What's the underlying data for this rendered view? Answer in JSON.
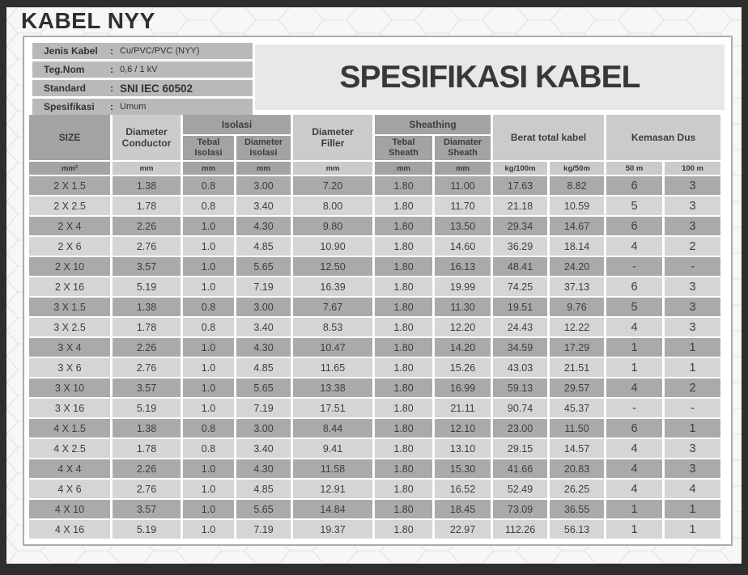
{
  "page": {
    "title": "KABEL NYY",
    "colon": ":"
  },
  "info_panel": {
    "rows": [
      {
        "label": "Jenis Kabel",
        "value": "Cu/PVC/PVC (NYY)"
      },
      {
        "label": "Teg.Nom",
        "value": "0,6 / 1 kV"
      },
      {
        "label": "Standard",
        "value": "SNI IEC 60502"
      },
      {
        "label": "Spesifikasi",
        "value": "Umum"
      }
    ]
  },
  "main_title": "SPESIFIKASI KABEL",
  "table": {
    "headers": {
      "size": "SIZE",
      "diameter_conductor": "Diameter Conductor",
      "isolasi_group": "Isolasi",
      "tebal_isolasi": "Tebal Isolasi",
      "diameter_isolasi": "Diameter Isolasi",
      "diameter_filler": "Diameter Filler",
      "sheathing_group": "Sheathing",
      "tebal_sheath": "Tebal Sheath",
      "diamater_sheath": "Diamater Sheath",
      "berat_total": "Berat total kabel",
      "kemasan_dus": "Kemasan Dus"
    },
    "units": [
      "mm²",
      "mm",
      "mm",
      "mm",
      "mm",
      "mm",
      "mm",
      "kg/100m",
      "kg/50m",
      "50 m",
      "100 m"
    ],
    "rows": [
      [
        "2 X 1.5",
        "1.38",
        "0.8",
        "3.00",
        "7.20",
        "1.80",
        "11.00",
        "17.63",
        "8.82",
        "6",
        "3"
      ],
      [
        "2 X 2.5",
        "1.78",
        "0.8",
        "3.40",
        "8.00",
        "1.80",
        "11.70",
        "21.18",
        "10.59",
        "5",
        "3"
      ],
      [
        "2 X 4",
        "2.26",
        "1.0",
        "4.30",
        "9.80",
        "1.80",
        "13.50",
        "29.34",
        "14.67",
        "6",
        "3"
      ],
      [
        "2 X 6",
        "2.76",
        "1.0",
        "4.85",
        "10.90",
        "1.80",
        "14.60",
        "36.29",
        "18.14",
        "4",
        "2"
      ],
      [
        "2 X 10",
        "3.57",
        "1.0",
        "5.65",
        "12.50",
        "1.80",
        "16.13",
        "48.41",
        "24.20",
        "-",
        "-"
      ],
      [
        "2 X 16",
        "5.19",
        "1.0",
        "7.19",
        "16.39",
        "1.80",
        "19.99",
        "74.25",
        "37.13",
        "6",
        "3"
      ],
      [
        "3 X 1.5",
        "1.38",
        "0.8",
        "3.00",
        "7.67",
        "1.80",
        "11.30",
        "19.51",
        "9.76",
        "5",
        "3"
      ],
      [
        "3 X 2.5",
        "1.78",
        "0.8",
        "3.40",
        "8.53",
        "1.80",
        "12.20",
        "24.43",
        "12.22",
        "4",
        "3"
      ],
      [
        "3 X 4",
        "2.26",
        "1.0",
        "4.30",
        "10.47",
        "1.80",
        "14.20",
        "34.59",
        "17.29",
        "1",
        "1"
      ],
      [
        "3 X 6",
        "2.76",
        "1.0",
        "4.85",
        "11.65",
        "1.80",
        "15.26",
        "43.03",
        "21.51",
        "1",
        "1"
      ],
      [
        "3 X 10",
        "3.57",
        "1.0",
        "5.65",
        "13.38",
        "1.80",
        "16.99",
        "59.13",
        "29.57",
        "4",
        "2"
      ],
      [
        "3 X 16",
        "5.19",
        "1.0",
        "7.19",
        "17.51",
        "1.80",
        "21.11",
        "90.74",
        "45.37",
        "-",
        "-"
      ],
      [
        "4 X 1.5",
        "1.38",
        "0.8",
        "3.00",
        "8.44",
        "1.80",
        "12.10",
        "23.00",
        "11.50",
        "6",
        "1"
      ],
      [
        "4 X 2.5",
        "1.78",
        "0.8",
        "3.40",
        "9.41",
        "1.80",
        "13.10",
        "29.15",
        "14.57",
        "4",
        "3"
      ],
      [
        "4 X 4",
        "2.26",
        "1.0",
        "4.30",
        "11.58",
        "1.80",
        "15.30",
        "41.66",
        "20.83",
        "4",
        "3"
      ],
      [
        "4 X 6",
        "2.76",
        "1.0",
        "4.85",
        "12.91",
        "1.80",
        "16.52",
        "52.49",
        "26.25",
        "4",
        "4"
      ],
      [
        "4 X 10",
        "3.57",
        "1.0",
        "5.65",
        "14.84",
        "1.80",
        "18.45",
        "73.09",
        "36.55",
        "1",
        "1"
      ],
      [
        "4 X 16",
        "5.19",
        "1.0",
        "7.19",
        "19.37",
        "1.80",
        "22.97",
        "112.26",
        "56.13",
        "1",
        "1"
      ]
    ]
  },
  "colors": {
    "frame": "#2e2e2e",
    "panel_border": "#ababab",
    "info_bar": "#b9b9b9",
    "header_medium": "#a3a3a3",
    "header_light": "#cbcbcb",
    "row_dark": "#aaaaaa",
    "row_light": "#d5d5d5",
    "spec_box": "#e8e8e7",
    "hex_background": "#f7f7f6",
    "hex_stroke": "#e3e3e1"
  }
}
